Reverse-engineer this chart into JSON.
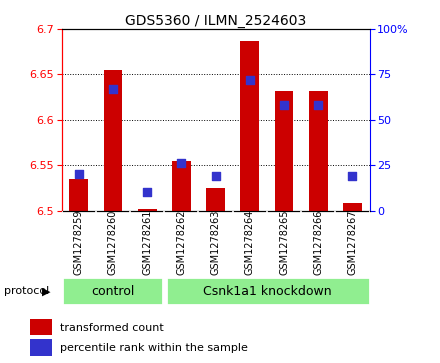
{
  "title": "GDS5360 / ILMN_2524603",
  "samples": [
    "GSM1278259",
    "GSM1278260",
    "GSM1278261",
    "GSM1278262",
    "GSM1278263",
    "GSM1278264",
    "GSM1278265",
    "GSM1278266",
    "GSM1278267"
  ],
  "transformed_counts": [
    6.535,
    6.655,
    6.502,
    6.555,
    6.525,
    6.687,
    6.632,
    6.632,
    6.508
  ],
  "percentile_ranks": [
    20,
    67,
    10,
    26,
    19,
    72,
    58,
    58,
    19
  ],
  "ylim": [
    6.5,
    6.7
  ],
  "yticks_left": [
    6.5,
    6.55,
    6.6,
    6.65,
    6.7
  ],
  "yticks_right": [
    0,
    25,
    50,
    75,
    100
  ],
  "bar_color": "#cc0000",
  "dot_color": "#3333cc",
  "control_count": 3,
  "knockdown_count": 6,
  "control_label": "control",
  "knockdown_label": "Csnk1a1 knockdown",
  "protocol_label": "protocol",
  "legend_red": "transformed count",
  "legend_blue": "percentile rank within the sample",
  "green_color": "#90ee90",
  "gray_color": "#d0d0d0",
  "bar_bottom": 6.5,
  "dot_size": 28,
  "bar_width": 0.55
}
